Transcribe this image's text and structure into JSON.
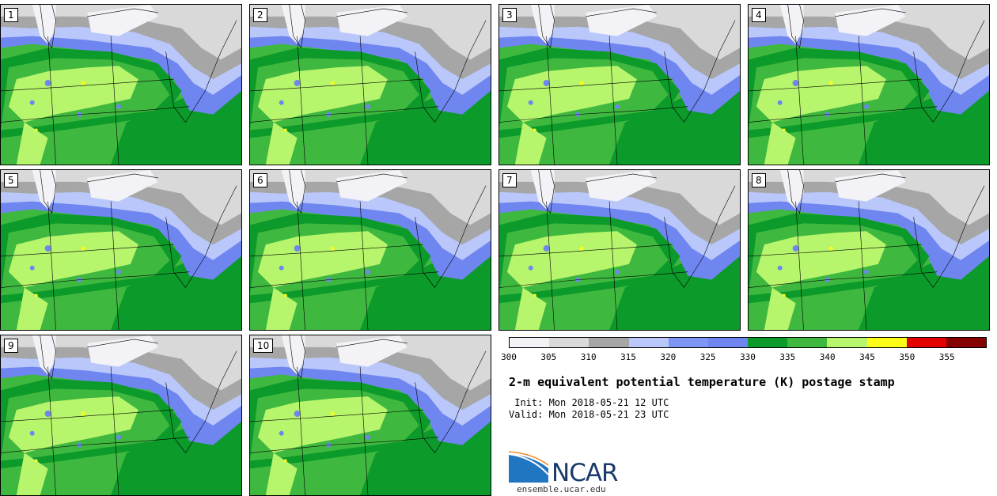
{
  "panels": [
    {
      "label": "1"
    },
    {
      "label": "2"
    },
    {
      "label": "3"
    },
    {
      "label": "4"
    },
    {
      "label": "5"
    },
    {
      "label": "6"
    },
    {
      "label": "7"
    },
    {
      "label": "8"
    },
    {
      "label": "9"
    },
    {
      "label": "10"
    }
  ],
  "colorbar": {
    "colors": [
      "#f3f3f7",
      "#d9d9d9",
      "#a6a6a6",
      "#b9c7fa",
      "#7d95f4",
      "#6f86f0",
      "#0c9a2a",
      "#3fb83f",
      "#b7f56c",
      "#fdfd1a",
      "#e30000",
      "#850000"
    ],
    "ticks": [
      "300",
      "305",
      "310",
      "315",
      "320",
      "325",
      "330",
      "335",
      "340",
      "345",
      "350",
      "355"
    ]
  },
  "title": "2-m equivalent potential temperature (K) postage stamp",
  "init": " Init: Mon 2018-05-21 12 UTC",
  "valid": "Valid: Mon 2018-05-21 23 UTC",
  "logo": {
    "text": "NCAR",
    "website": "ensemble.ucar.edu"
  }
}
